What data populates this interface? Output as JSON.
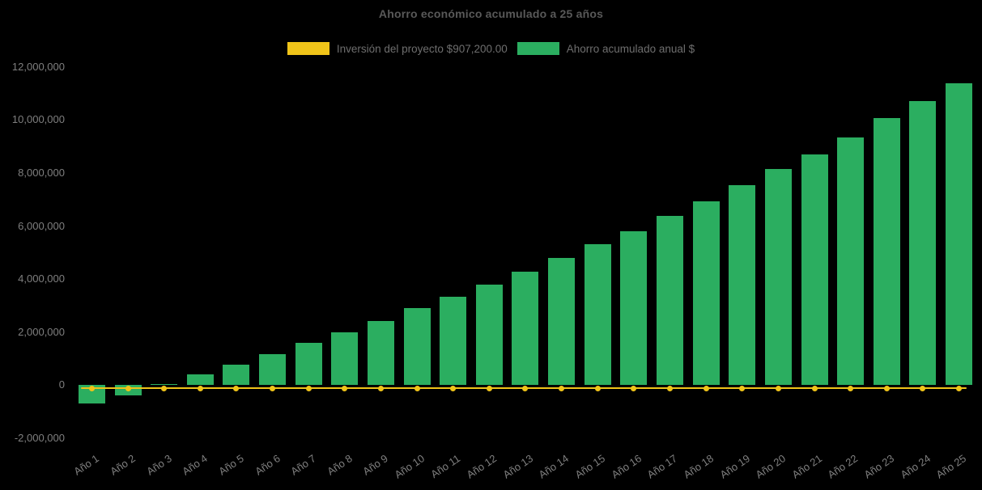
{
  "colors": {
    "background": "#000000",
    "title_text": "#595959",
    "legend_text": "#6E6E6E",
    "axis_text": "#7F7F7F",
    "bar_green": "#2BAE60",
    "line_yellow": "#F0C419"
  },
  "chart_data": {
    "type": "bar",
    "title": "Ahorro económico acumulado a 25 años",
    "legend_position": "top-center",
    "grid": false,
    "values_are_estimates": true,
    "categories": [
      "Año 1",
      "Año 2",
      "Año 3",
      "Año 4",
      "Año 5",
      "Año 6",
      "Año 7",
      "Año 8",
      "Año 9",
      "Año 10",
      "Año 11",
      "Año 12",
      "Año 13",
      "Año 14",
      "Año 15",
      "Año 16",
      "Año 17",
      "Año 18",
      "Año 19",
      "Año 20",
      "Año 21",
      "Año 22",
      "Año 23",
      "Año 24",
      "Año 25"
    ],
    "series": [
      {
        "name": "Inversión del proyecto $907,200.00",
        "type": "line",
        "color": "#F0C419",
        "investment_amount": 907200,
        "constant_value": 0,
        "note": "Flat yellow reference line with a round marker at every year, drawn at / just below the zero baseline"
      },
      {
        "name": "Ahorro acumulado anual $",
        "type": "bar",
        "color": "#2BAE60",
        "values": [
          -700000,
          -370000,
          50000,
          420000,
          780000,
          1170000,
          1590000,
          2000000,
          2420000,
          2910000,
          3330000,
          3800000,
          4280000,
          4800000,
          5330000,
          5810000,
          6370000,
          6940000,
          7540000,
          8150000,
          8710000,
          9350000,
          10060000,
          10720000,
          11380000
        ]
      }
    ],
    "y_axis": {
      "min": -2000000,
      "max": 12000000,
      "tick_step": 2000000,
      "ticks": [
        {
          "value": 12000000,
          "label": "12,000,000"
        },
        {
          "value": 10000000,
          "label": "10,000,000"
        },
        {
          "value": 8000000,
          "label": "8,000,000"
        },
        {
          "value": 6000000,
          "label": "6,000,000"
        },
        {
          "value": 4000000,
          "label": "4,000,000"
        },
        {
          "value": 2000000,
          "label": "2,000,000"
        },
        {
          "value": 0,
          "label": "0"
        },
        {
          "value": -2000000,
          "label": "-2,000,000"
        }
      ]
    },
    "x_axis": {
      "label_rotation_deg": -34
    }
  }
}
